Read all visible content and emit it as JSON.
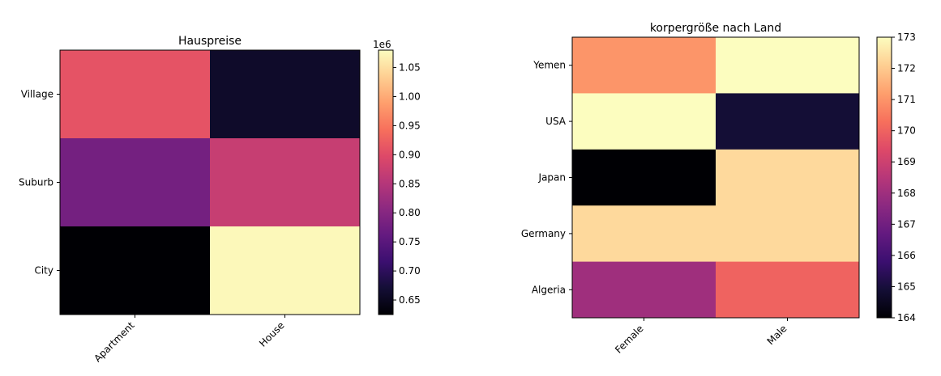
{
  "chart_data": [
    {
      "type": "heatmap",
      "title": "Hauspreise",
      "x_categories": [
        "Apartment",
        "House"
      ],
      "y_categories": [
        "Village",
        "Suburb",
        "City"
      ],
      "values": [
        [
          910000,
          660000
        ],
        [
          780000,
          870000
        ],
        [
          625000,
          1075000
        ]
      ],
      "colormap": "magma",
      "colorbar": {
        "min": 625000,
        "max": 1080000,
        "ticks": [
          650000,
          700000,
          750000,
          800000,
          850000,
          900000,
          950000,
          1000000,
          1050000
        ],
        "tick_labels": [
          "0.65",
          "0.70",
          "0.75",
          "0.80",
          "0.85",
          "0.90",
          "0.95",
          "1.00",
          "1.05"
        ],
        "offset_label": "1e6"
      },
      "xtick_rotation": 45
    },
    {
      "type": "heatmap",
      "title": "korpergröße  nach Land",
      "x_categories": [
        "Female",
        "Male"
      ],
      "y_categories": [
        "Yemen",
        "USA",
        "Japan",
        "Germany",
        "Algeria"
      ],
      "values": [
        [
          171.0,
          173.0
        ],
        [
          173.0,
          164.9
        ],
        [
          164.0,
          172.3
        ],
        [
          172.3,
          172.3
        ],
        [
          168.0,
          170.0
        ]
      ],
      "colormap": "magma",
      "colorbar": {
        "min": 164,
        "max": 173,
        "ticks": [
          164,
          165,
          166,
          167,
          168,
          169,
          170,
          171,
          172,
          173
        ],
        "tick_labels": [
          "164",
          "165",
          "166",
          "167",
          "168",
          "169",
          "170",
          "171",
          "172",
          "173"
        ],
        "offset_label": ""
      },
      "xtick_rotation": 45
    }
  ]
}
